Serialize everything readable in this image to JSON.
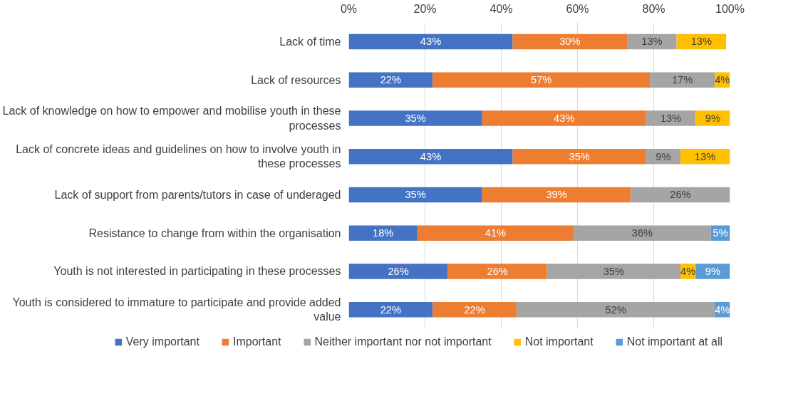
{
  "chart_data": {
    "type": "bar",
    "orientation": "horizontal",
    "stacked": true,
    "categories": [
      "Lack of time",
      "Lack of resources",
      "Lack of knowledge on how to empower and mobilise youth in these processes",
      "Lack of concrete ideas and guidelines on how to involve youth in these processes",
      "Lack of support from parents/tutors in case of underaged",
      "Resistance to change from within the organisation",
      "Youth is not interested in participating in these processes",
      "Youth is considered to immature to participate and provide added value"
    ],
    "series": [
      {
        "name": "Very important",
        "color": "#4472c4",
        "values": [
          43,
          22,
          35,
          43,
          35,
          18,
          26,
          22
        ],
        "value_labels": [
          "43%",
          "22%",
          "35%",
          "43%",
          "35%",
          "18%",
          "26%",
          "22%"
        ]
      },
      {
        "name": "Important",
        "color": "#ed7d31",
        "values": [
          30,
          57,
          43,
          35,
          39,
          41,
          26,
          22
        ],
        "value_labels": [
          "30%",
          "57%",
          "43%",
          "35%",
          "39%",
          "41%",
          "26%",
          "22%"
        ]
      },
      {
        "name": "Neither important nor not important",
        "color": "#a5a5a5",
        "values": [
          13,
          17,
          13,
          9,
          26,
          36,
          35,
          52
        ],
        "value_labels": [
          "13%",
          "17%",
          "13%",
          "9%",
          "26%",
          "36%",
          "35%",
          "52%"
        ]
      },
      {
        "name": "Not important",
        "color": "#ffc000",
        "values": [
          13,
          4,
          9,
          13,
          null,
          null,
          4,
          null
        ],
        "value_labels": [
          "13%",
          "4%",
          "9%",
          "13%",
          null,
          null,
          "4%",
          null
        ]
      },
      {
        "name": "Not important at all",
        "color": "#5b9bd5",
        "values": [
          null,
          null,
          null,
          null,
          null,
          5,
          9,
          4
        ],
        "value_labels": [
          null,
          null,
          null,
          null,
          null,
          "5%",
          "9%",
          "4%"
        ]
      }
    ],
    "xlim": [
      0,
      100
    ],
    "xticks": [
      {
        "value": 0,
        "label": "0%"
      },
      {
        "value": 20,
        "label": "20%"
      },
      {
        "value": 40,
        "label": "40%"
      },
      {
        "value": 60,
        "label": "60%"
      },
      {
        "value": 80,
        "label": "80%"
      },
      {
        "value": 100,
        "label": "100%"
      }
    ],
    "grid": "x",
    "legend": "bottom"
  }
}
